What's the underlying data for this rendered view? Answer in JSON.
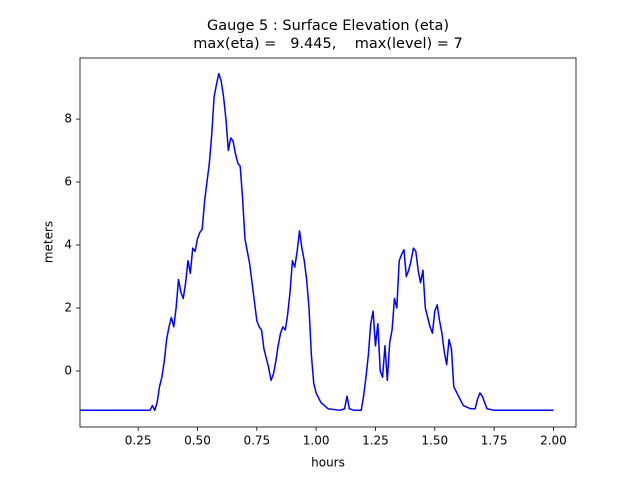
{
  "chart_data": {
    "type": "line",
    "title": "Gauge 5 : Surface Elevation (eta)",
    "subtitle": "max(eta) =   9.445,    max(level) = 7",
    "x_label": "hours",
    "y_label": "meters",
    "color": "#0000ff",
    "xlim": [
      0.005,
      2.095
    ],
    "ylim": [
      -1.78,
      9.94
    ],
    "xticks": [
      {
        "value": 0.25,
        "label": "0.25"
      },
      {
        "value": 0.5,
        "label": "0.50"
      },
      {
        "value": 0.75,
        "label": "0.75"
      },
      {
        "value": 1,
        "label": "1.00"
      },
      {
        "value": 1.25,
        "label": "1.25"
      },
      {
        "value": 1.5,
        "label": "1.50"
      },
      {
        "value": 1.75,
        "label": "1.75"
      },
      {
        "value": 2,
        "label": "2.00"
      }
    ],
    "yticks": [
      0,
      2,
      4,
      6,
      8
    ],
    "x": [
      0.005,
      0.3,
      0.31,
      0.32,
      0.33,
      0.34,
      0.35,
      0.36,
      0.37,
      0.38,
      0.39,
      0.4,
      0.41,
      0.42,
      0.43,
      0.44,
      0.45,
      0.46,
      0.47,
      0.48,
      0.49,
      0.5,
      0.51,
      0.52,
      0.53,
      0.54,
      0.55,
      0.56,
      0.57,
      0.58,
      0.59,
      0.6,
      0.61,
      0.62,
      0.63,
      0.64,
      0.65,
      0.66,
      0.67,
      0.68,
      0.69,
      0.7,
      0.71,
      0.72,
      0.73,
      0.74,
      0.75,
      0.76,
      0.77,
      0.78,
      0.79,
      0.8,
      0.81,
      0.82,
      0.83,
      0.84,
      0.85,
      0.86,
      0.87,
      0.88,
      0.89,
      0.9,
      0.91,
      0.92,
      0.93,
      0.94,
      0.95,
      0.96,
      0.97,
      0.98,
      0.99,
      1.0,
      1.02,
      1.05,
      1.1,
      1.12,
      1.13,
      1.14,
      1.16,
      1.19,
      1.2,
      1.21,
      1.22,
      1.23,
      1.24,
      1.25,
      1.26,
      1.27,
      1.28,
      1.29,
      1.3,
      1.31,
      1.32,
      1.33,
      1.34,
      1.35,
      1.36,
      1.37,
      1.38,
      1.39,
      1.4,
      1.41,
      1.42,
      1.43,
      1.44,
      1.45,
      1.46,
      1.47,
      1.48,
      1.49,
      1.5,
      1.51,
      1.52,
      1.53,
      1.54,
      1.55,
      1.56,
      1.57,
      1.58,
      1.6,
      1.62,
      1.65,
      1.67,
      1.68,
      1.69,
      1.7,
      1.72,
      1.75,
      2.0
    ],
    "values": [
      -1.25,
      -1.25,
      -1.1,
      -1.25,
      -1.0,
      -0.5,
      -0.2,
      0.3,
      1.0,
      1.4,
      1.7,
      1.4,
      2.0,
      2.9,
      2.5,
      2.3,
      2.8,
      3.5,
      3.1,
      3.9,
      3.8,
      4.2,
      4.4,
      4.5,
      5.4,
      6.0,
      6.6,
      7.5,
      8.7,
      9.1,
      9.445,
      9.2,
      8.7,
      8.0,
      7.0,
      7.4,
      7.3,
      6.9,
      6.6,
      6.5,
      5.5,
      4.2,
      3.8,
      3.4,
      2.8,
      2.2,
      1.6,
      1.4,
      1.3,
      0.7,
      0.4,
      0.1,
      -0.3,
      -0.1,
      0.3,
      0.8,
      1.2,
      1.4,
      1.3,
      1.8,
      2.5,
      3.5,
      3.3,
      3.8,
      4.45,
      3.9,
      3.5,
      2.9,
      2.0,
      0.5,
      -0.4,
      -0.7,
      -1.0,
      -1.2,
      -1.25,
      -1.2,
      -0.8,
      -1.2,
      -1.25,
      -1.25,
      -0.8,
      -0.2,
      0.5,
      1.5,
      1.9,
      0.8,
      1.5,
      0.0,
      -0.2,
      0.8,
      -0.3,
      0.9,
      1.3,
      2.3,
      2.0,
      3.5,
      3.7,
      3.85,
      3.0,
      3.2,
      3.5,
      3.9,
      3.8,
      3.2,
      2.8,
      3.2,
      2.0,
      1.7,
      1.4,
      1.2,
      1.9,
      2.1,
      1.6,
      1.2,
      0.6,
      0.2,
      1.0,
      0.7,
      -0.5,
      -0.8,
      -1.1,
      -1.2,
      -1.2,
      -0.9,
      -0.7,
      -0.8,
      -1.2,
      -1.25,
      -1.25
    ]
  }
}
